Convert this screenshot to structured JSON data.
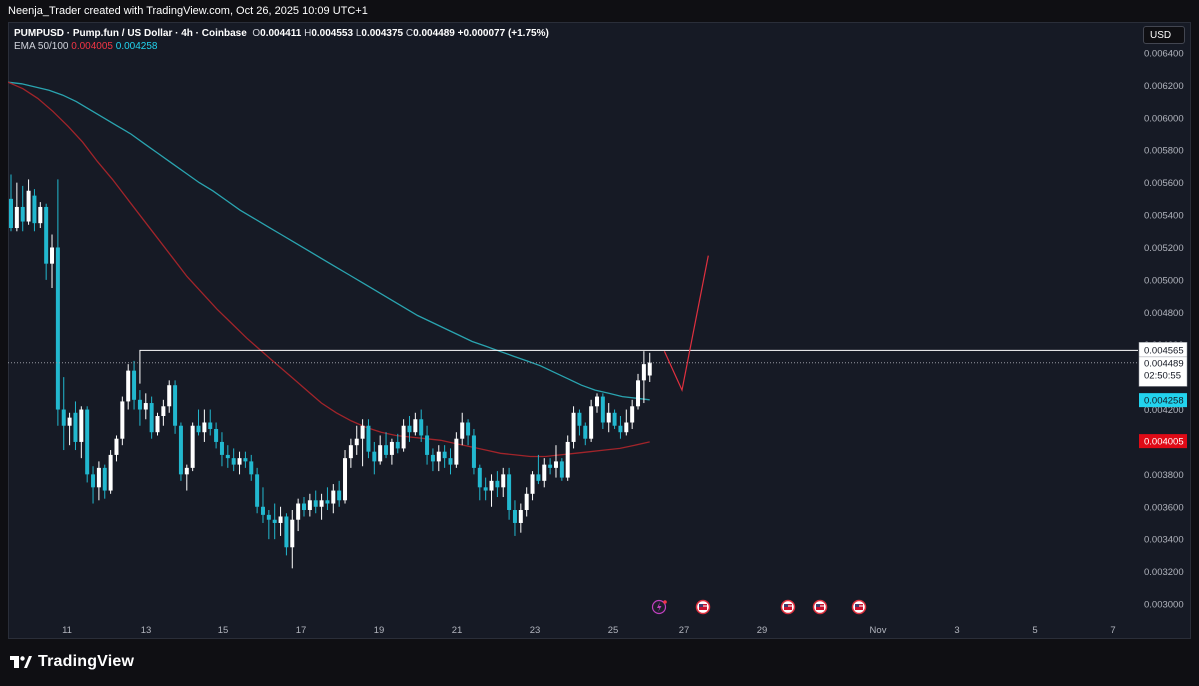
{
  "header": {
    "title": "Neenja_Trader created with TradingView.com, Oct 26, 2025 10:09 UTC+1"
  },
  "legend": {
    "symbol": "PUMPUSD · Pump.fun / US Dollar · 4h · Coinbase",
    "open_label": "O",
    "open": "0.004411",
    "high_label": "H",
    "high": "0.004553",
    "low_label": "L",
    "low": "0.004375",
    "close_label": "C",
    "close": "0.004489",
    "change": "+0.000077 (+1.75%)",
    "ema_label": "EMA 50/100",
    "ema_slow_value": "0.004005",
    "ema_fast_value": "0.004258"
  },
  "currency_button": "USD",
  "brand": "TradingView",
  "colors": {
    "background": "#161a25",
    "bull_candle": "#ffffff",
    "bear_candle": "#22b8cf",
    "ema_fast": "#2aa4b0",
    "ema_slow": "#a1242a",
    "resistance_line": "#ffffff",
    "projection": "#e0303f",
    "ema_fast_badge": "#22d3ee",
    "ema_slow_badge": "#e00a16"
  },
  "chart_data": {
    "type": "candlestick",
    "symbol": "PUMPUSD",
    "timeframe": "4h",
    "exchange": "Coinbase",
    "y_axis": {
      "ticks": [
        "0.006400",
        "0.006200",
        "0.006000",
        "0.005800",
        "0.005600",
        "0.005400",
        "0.005200",
        "0.005000",
        "0.004800",
        "0.004600",
        "0.004400",
        "0.004200",
        "0.004000",
        "0.003800",
        "0.003600",
        "0.003400",
        "0.003200",
        "0.003000"
      ],
      "ylim": [
        0.00294,
        0.00652
      ]
    },
    "x_axis": {
      "ticks": [
        "11",
        "13",
        "15",
        "17",
        "19",
        "21",
        "23",
        "25",
        "27",
        "29",
        "Nov",
        "3",
        "5",
        "7"
      ]
    },
    "price_labels": {
      "resistance": "0.004565",
      "last_price": "0.004489",
      "countdown": "02:50:55",
      "ema_fast": "0.004258",
      "ema_slow": "0.004005"
    },
    "resistance_level": 0.004565,
    "last_price": 0.004489,
    "candles": [
      {
        "o": 0.0055,
        "h": 0.00565,
        "l": 0.0053,
        "c": 0.00532
      },
      {
        "o": 0.00532,
        "h": 0.0056,
        "l": 0.0053,
        "c": 0.00545
      },
      {
        "o": 0.00545,
        "h": 0.00558,
        "l": 0.0053,
        "c": 0.00536
      },
      {
        "o": 0.00536,
        "h": 0.00562,
        "l": 0.00534,
        "c": 0.00555
      },
      {
        "o": 0.00552,
        "h": 0.00556,
        "l": 0.0053,
        "c": 0.00535
      },
      {
        "o": 0.00535,
        "h": 0.00548,
        "l": 0.00532,
        "c": 0.00545
      },
      {
        "o": 0.00545,
        "h": 0.00547,
        "l": 0.005,
        "c": 0.0051
      },
      {
        "o": 0.0051,
        "h": 0.00528,
        "l": 0.00495,
        "c": 0.0052
      },
      {
        "o": 0.0052,
        "h": 0.00562,
        "l": 0.0041,
        "c": 0.0042
      },
      {
        "o": 0.0042,
        "h": 0.0044,
        "l": 0.00395,
        "c": 0.0041
      },
      {
        "o": 0.0041,
        "h": 0.00418,
        "l": 0.00398,
        "c": 0.00415
      },
      {
        "o": 0.00418,
        "h": 0.00425,
        "l": 0.00395,
        "c": 0.004
      },
      {
        "o": 0.004,
        "h": 0.00422,
        "l": 0.0039,
        "c": 0.0042
      },
      {
        "o": 0.0042,
        "h": 0.00422,
        "l": 0.00375,
        "c": 0.0038
      },
      {
        "o": 0.0038,
        "h": 0.00385,
        "l": 0.00362,
        "c": 0.00372
      },
      {
        "o": 0.00372,
        "h": 0.00388,
        "l": 0.00364,
        "c": 0.00384
      },
      {
        "o": 0.00384,
        "h": 0.00386,
        "l": 0.00365,
        "c": 0.0037
      },
      {
        "o": 0.0037,
        "h": 0.00395,
        "l": 0.00368,
        "c": 0.00392
      },
      {
        "o": 0.00392,
        "h": 0.00404,
        "l": 0.00388,
        "c": 0.00402
      },
      {
        "o": 0.00402,
        "h": 0.00428,
        "l": 0.00398,
        "c": 0.00425
      },
      {
        "o": 0.00425,
        "h": 0.00448,
        "l": 0.0042,
        "c": 0.00444
      },
      {
        "o": 0.00444,
        "h": 0.0045,
        "l": 0.0042,
        "c": 0.00426
      },
      {
        "o": 0.00426,
        "h": 0.00432,
        "l": 0.0041,
        "c": 0.0042
      },
      {
        "o": 0.0042,
        "h": 0.0043,
        "l": 0.00414,
        "c": 0.00424
      },
      {
        "o": 0.00424,
        "h": 0.00428,
        "l": 0.00402,
        "c": 0.00406
      },
      {
        "o": 0.00406,
        "h": 0.00418,
        "l": 0.00404,
        "c": 0.00416
      },
      {
        "o": 0.00416,
        "h": 0.00426,
        "l": 0.0041,
        "c": 0.00422
      },
      {
        "o": 0.00422,
        "h": 0.00438,
        "l": 0.00418,
        "c": 0.00435
      },
      {
        "o": 0.00435,
        "h": 0.00438,
        "l": 0.00405,
        "c": 0.0041
      },
      {
        "o": 0.0041,
        "h": 0.00412,
        "l": 0.00376,
        "c": 0.0038
      },
      {
        "o": 0.0038,
        "h": 0.00386,
        "l": 0.0037,
        "c": 0.00384
      },
      {
        "o": 0.00384,
        "h": 0.00412,
        "l": 0.00382,
        "c": 0.0041
      },
      {
        "o": 0.0041,
        "h": 0.0042,
        "l": 0.00404,
        "c": 0.00406
      },
      {
        "o": 0.00406,
        "h": 0.0042,
        "l": 0.004,
        "c": 0.00412
      },
      {
        "o": 0.00412,
        "h": 0.0042,
        "l": 0.00404,
        "c": 0.00408
      },
      {
        "o": 0.00408,
        "h": 0.00412,
        "l": 0.00396,
        "c": 0.004
      },
      {
        "o": 0.004,
        "h": 0.00406,
        "l": 0.00385,
        "c": 0.00392
      },
      {
        "o": 0.00392,
        "h": 0.00398,
        "l": 0.00384,
        "c": 0.0039
      },
      {
        "o": 0.0039,
        "h": 0.00396,
        "l": 0.00382,
        "c": 0.00386
      },
      {
        "o": 0.00386,
        "h": 0.00394,
        "l": 0.0038,
        "c": 0.0039
      },
      {
        "o": 0.0039,
        "h": 0.00394,
        "l": 0.00384,
        "c": 0.00388
      },
      {
        "o": 0.00388,
        "h": 0.00392,
        "l": 0.00376,
        "c": 0.0038
      },
      {
        "o": 0.0038,
        "h": 0.00384,
        "l": 0.00356,
        "c": 0.0036
      },
      {
        "o": 0.0036,
        "h": 0.00372,
        "l": 0.0035,
        "c": 0.00355
      },
      {
        "o": 0.00355,
        "h": 0.00358,
        "l": 0.0034,
        "c": 0.00352
      },
      {
        "o": 0.00352,
        "h": 0.00362,
        "l": 0.0034,
        "c": 0.0035
      },
      {
        "o": 0.0035,
        "h": 0.0036,
        "l": 0.00342,
        "c": 0.00354
      },
      {
        "o": 0.00354,
        "h": 0.00356,
        "l": 0.0033,
        "c": 0.00335
      },
      {
        "o": 0.00335,
        "h": 0.00358,
        "l": 0.00322,
        "c": 0.00352
      },
      {
        "o": 0.00352,
        "h": 0.00365,
        "l": 0.00345,
        "c": 0.00362
      },
      {
        "o": 0.00362,
        "h": 0.00366,
        "l": 0.00354,
        "c": 0.00358
      },
      {
        "o": 0.00358,
        "h": 0.00368,
        "l": 0.00354,
        "c": 0.00364
      },
      {
        "o": 0.00364,
        "h": 0.0037,
        "l": 0.00356,
        "c": 0.0036
      },
      {
        "o": 0.0036,
        "h": 0.00368,
        "l": 0.00352,
        "c": 0.00364
      },
      {
        "o": 0.00364,
        "h": 0.00372,
        "l": 0.00358,
        "c": 0.00362
      },
      {
        "o": 0.00362,
        "h": 0.00374,
        "l": 0.00356,
        "c": 0.0037
      },
      {
        "o": 0.0037,
        "h": 0.00376,
        "l": 0.0036,
        "c": 0.00364
      },
      {
        "o": 0.00364,
        "h": 0.00395,
        "l": 0.00362,
        "c": 0.0039
      },
      {
        "o": 0.0039,
        "h": 0.00402,
        "l": 0.00384,
        "c": 0.00398
      },
      {
        "o": 0.00398,
        "h": 0.0041,
        "l": 0.00392,
        "c": 0.00402
      },
      {
        "o": 0.00402,
        "h": 0.00414,
        "l": 0.00385,
        "c": 0.0041
      },
      {
        "o": 0.0041,
        "h": 0.00414,
        "l": 0.0039,
        "c": 0.00394
      },
      {
        "o": 0.00394,
        "h": 0.004,
        "l": 0.0038,
        "c": 0.00388
      },
      {
        "o": 0.00388,
        "h": 0.00404,
        "l": 0.00386,
        "c": 0.00398
      },
      {
        "o": 0.00398,
        "h": 0.00406,
        "l": 0.0039,
        "c": 0.00392
      },
      {
        "o": 0.00392,
        "h": 0.00402,
        "l": 0.00386,
        "c": 0.004
      },
      {
        "o": 0.004,
        "h": 0.00405,
        "l": 0.00393,
        "c": 0.00396
      },
      {
        "o": 0.00396,
        "h": 0.00414,
        "l": 0.00394,
        "c": 0.0041
      },
      {
        "o": 0.0041,
        "h": 0.00416,
        "l": 0.004,
        "c": 0.00406
      },
      {
        "o": 0.00406,
        "h": 0.00418,
        "l": 0.00404,
        "c": 0.00414
      },
      {
        "o": 0.00414,
        "h": 0.0042,
        "l": 0.004,
        "c": 0.00404
      },
      {
        "o": 0.00404,
        "h": 0.0041,
        "l": 0.00386,
        "c": 0.00392
      },
      {
        "o": 0.00392,
        "h": 0.00396,
        "l": 0.00382,
        "c": 0.00388
      },
      {
        "o": 0.00388,
        "h": 0.00398,
        "l": 0.00382,
        "c": 0.00394
      },
      {
        "o": 0.00394,
        "h": 0.00398,
        "l": 0.00384,
        "c": 0.0039
      },
      {
        "o": 0.0039,
        "h": 0.00396,
        "l": 0.0038,
        "c": 0.00386
      },
      {
        "o": 0.00386,
        "h": 0.00406,
        "l": 0.00384,
        "c": 0.00402
      },
      {
        "o": 0.00402,
        "h": 0.00418,
        "l": 0.00398,
        "c": 0.00412
      },
      {
        "o": 0.00412,
        "h": 0.00414,
        "l": 0.00398,
        "c": 0.00404
      },
      {
        "o": 0.00404,
        "h": 0.00408,
        "l": 0.0038,
        "c": 0.00384
      },
      {
        "o": 0.00384,
        "h": 0.00386,
        "l": 0.00364,
        "c": 0.00372
      },
      {
        "o": 0.00372,
        "h": 0.00378,
        "l": 0.00364,
        "c": 0.0037
      },
      {
        "o": 0.0037,
        "h": 0.0038,
        "l": 0.0036,
        "c": 0.00376
      },
      {
        "o": 0.00376,
        "h": 0.00382,
        "l": 0.00366,
        "c": 0.00372
      },
      {
        "o": 0.00372,
        "h": 0.00384,
        "l": 0.00366,
        "c": 0.0038
      },
      {
        "o": 0.0038,
        "h": 0.00384,
        "l": 0.00352,
        "c": 0.00358
      },
      {
        "o": 0.00358,
        "h": 0.00364,
        "l": 0.00342,
        "c": 0.0035
      },
      {
        "o": 0.0035,
        "h": 0.00362,
        "l": 0.00344,
        "c": 0.00358
      },
      {
        "o": 0.00358,
        "h": 0.00372,
        "l": 0.00354,
        "c": 0.00368
      },
      {
        "o": 0.00368,
        "h": 0.00382,
        "l": 0.00364,
        "c": 0.0038
      },
      {
        "o": 0.0038,
        "h": 0.00392,
        "l": 0.00374,
        "c": 0.00376
      },
      {
        "o": 0.00376,
        "h": 0.0039,
        "l": 0.00372,
        "c": 0.00386
      },
      {
        "o": 0.00386,
        "h": 0.0039,
        "l": 0.0038,
        "c": 0.00384
      },
      {
        "o": 0.00384,
        "h": 0.00398,
        "l": 0.00378,
        "c": 0.00388
      },
      {
        "o": 0.00388,
        "h": 0.0039,
        "l": 0.00376,
        "c": 0.00378
      },
      {
        "o": 0.00378,
        "h": 0.00404,
        "l": 0.00376,
        "c": 0.004
      },
      {
        "o": 0.004,
        "h": 0.00422,
        "l": 0.00396,
        "c": 0.00418
      },
      {
        "o": 0.00418,
        "h": 0.0042,
        "l": 0.00404,
        "c": 0.0041
      },
      {
        "o": 0.0041,
        "h": 0.00412,
        "l": 0.00398,
        "c": 0.00402
      },
      {
        "o": 0.00402,
        "h": 0.00426,
        "l": 0.004,
        "c": 0.00422
      },
      {
        "o": 0.00422,
        "h": 0.0043,
        "l": 0.00418,
        "c": 0.00428
      },
      {
        "o": 0.00428,
        "h": 0.0043,
        "l": 0.00408,
        "c": 0.00412
      },
      {
        "o": 0.00412,
        "h": 0.00424,
        "l": 0.00406,
        "c": 0.00418
      },
      {
        "o": 0.00418,
        "h": 0.0042,
        "l": 0.00408,
        "c": 0.0041
      },
      {
        "o": 0.0041,
        "h": 0.00416,
        "l": 0.00402,
        "c": 0.00406
      },
      {
        "o": 0.00406,
        "h": 0.0042,
        "l": 0.00404,
        "c": 0.00412
      },
      {
        "o": 0.00412,
        "h": 0.00426,
        "l": 0.00408,
        "c": 0.00422
      },
      {
        "o": 0.00422,
        "h": 0.00442,
        "l": 0.0042,
        "c": 0.00438
      },
      {
        "o": 0.00438,
        "h": 0.00456,
        "l": 0.00424,
        "c": 0.00448
      },
      {
        "o": 0.00441,
        "h": 0.00455,
        "l": 0.00437,
        "c": 0.00449
      }
    ],
    "ema_fast_series": [
      0.00622,
      0.00621,
      0.00619,
      0.00617,
      0.00614,
      0.0061,
      0.00605,
      0.006,
      0.00595,
      0.0059,
      0.00584,
      0.00578,
      0.00572,
      0.00566,
      0.0056,
      0.00555,
      0.00549,
      0.00543,
      0.00538,
      0.00533,
      0.00528,
      0.00523,
      0.00518,
      0.00513,
      0.00508,
      0.00503,
      0.00498,
      0.00493,
      0.00488,
      0.00483,
      0.00478,
      0.00474,
      0.0047,
      0.00466,
      0.00462,
      0.00459,
      0.00456,
      0.00453,
      0.0045,
      0.00447,
      0.00443,
      0.00439,
      0.00435,
      0.00432,
      0.0043,
      0.00428,
      0.00427,
      0.00426
    ],
    "ema_slow_series": [
      0.00622,
      0.00618,
      0.00612,
      0.00604,
      0.00595,
      0.00585,
      0.00573,
      0.00562,
      0.0055,
      0.00538,
      0.00526,
      0.00514,
      0.00502,
      0.00492,
      0.00482,
      0.00473,
      0.00464,
      0.00456,
      0.00448,
      0.0044,
      0.00432,
      0.00424,
      0.00418,
      0.00413,
      0.00409,
      0.00406,
      0.00404,
      0.00403,
      0.00402,
      0.00401,
      0.00399,
      0.00397,
      0.00395,
      0.00393,
      0.00392,
      0.00391,
      0.00391,
      0.00392,
      0.00393,
      0.00394,
      0.00395,
      0.00396,
      0.00398,
      0.004
    ],
    "projection_path": [
      {
        "t": 111.5,
        "price": 0.00456
      },
      {
        "t": 114.5,
        "price": 0.00432
      },
      {
        "t": 119.0,
        "price": 0.00515
      }
    ]
  }
}
